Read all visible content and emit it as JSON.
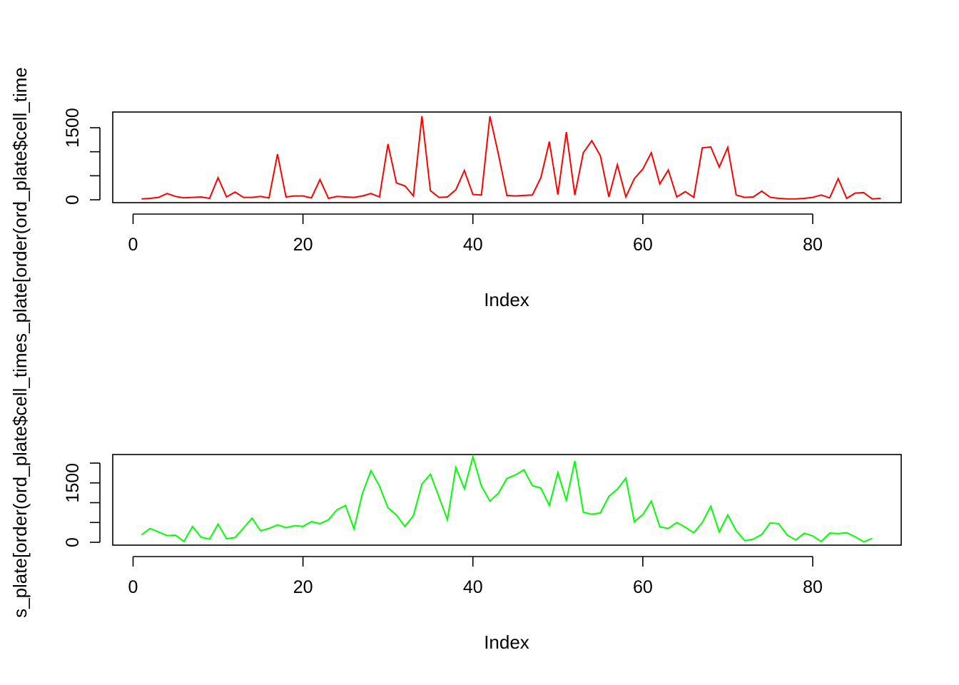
{
  "ylabel_top": "s_plate[order(ord_plate$cell_times_plate[order(ord_plate$cell_time",
  "chart_data": [
    {
      "type": "line",
      "xlabel": "Index",
      "color": "#ff0000",
      "xlim": [
        1,
        87
      ],
      "ylim": [
        0,
        1800
      ],
      "x_ticks": [
        0,
        20,
        40,
        60,
        80
      ],
      "y_ticks": [
        0,
        500,
        1000,
        1500
      ],
      "y_tick_labels": [
        "0",
        "",
        "",
        "1500"
      ],
      "series": [
        {
          "values": [
            20,
            30,
            50,
            130,
            70,
            40,
            50,
            60,
            30,
            460,
            60,
            160,
            50,
            50,
            70,
            40,
            950,
            60,
            80,
            80,
            40,
            420,
            30,
            70,
            60,
            50,
            80,
            130,
            60,
            1160,
            350,
            290,
            80,
            1740,
            190,
            50,
            60,
            210,
            610,
            110,
            100,
            1740,
            950,
            90,
            80,
            90,
            100,
            460,
            1210,
            110,
            1410,
            100,
            980,
            1230,
            920,
            60,
            730,
            60,
            440,
            640,
            980,
            330,
            620,
            60,
            170,
            50,
            1080,
            1100,
            680,
            1090,
            100,
            50,
            60,
            180,
            50,
            30,
            20,
            20,
            30,
            50,
            100,
            40,
            440,
            30,
            140,
            150,
            20,
            30
          ]
        }
      ]
    },
    {
      "type": "line",
      "xlabel": "Index",
      "color": "#00ff00",
      "xlim": [
        1,
        87
      ],
      "ylim": [
        0,
        2200
      ],
      "x_ticks": [
        0,
        20,
        40,
        60,
        80
      ],
      "y_ticks": [
        0,
        500,
        1000,
        1500,
        2000
      ],
      "y_tick_labels": [
        "0",
        "",
        "",
        "1500",
        ""
      ],
      "series": [
        {
          "values": [
            190,
            350,
            260,
            170,
            180,
            20,
            400,
            130,
            80,
            460,
            90,
            120,
            360,
            610,
            290,
            350,
            440,
            370,
            420,
            400,
            520,
            470,
            570,
            820,
            930,
            340,
            1240,
            1810,
            1420,
            870,
            690,
            400,
            670,
            1470,
            1720,
            1150,
            570,
            1890,
            1350,
            2160,
            1420,
            1040,
            1240,
            1610,
            1700,
            1830,
            1430,
            1370,
            930,
            1760,
            1060,
            2050,
            760,
            710,
            740,
            1160,
            1340,
            1620,
            520,
            700,
            1040,
            390,
            350,
            500,
            380,
            240,
            500,
            910,
            260,
            690,
            290,
            40,
            80,
            200,
            490,
            470,
            180,
            60,
            230,
            160,
            20,
            230,
            220,
            240,
            140,
            10,
            100
          ]
        }
      ]
    }
  ]
}
